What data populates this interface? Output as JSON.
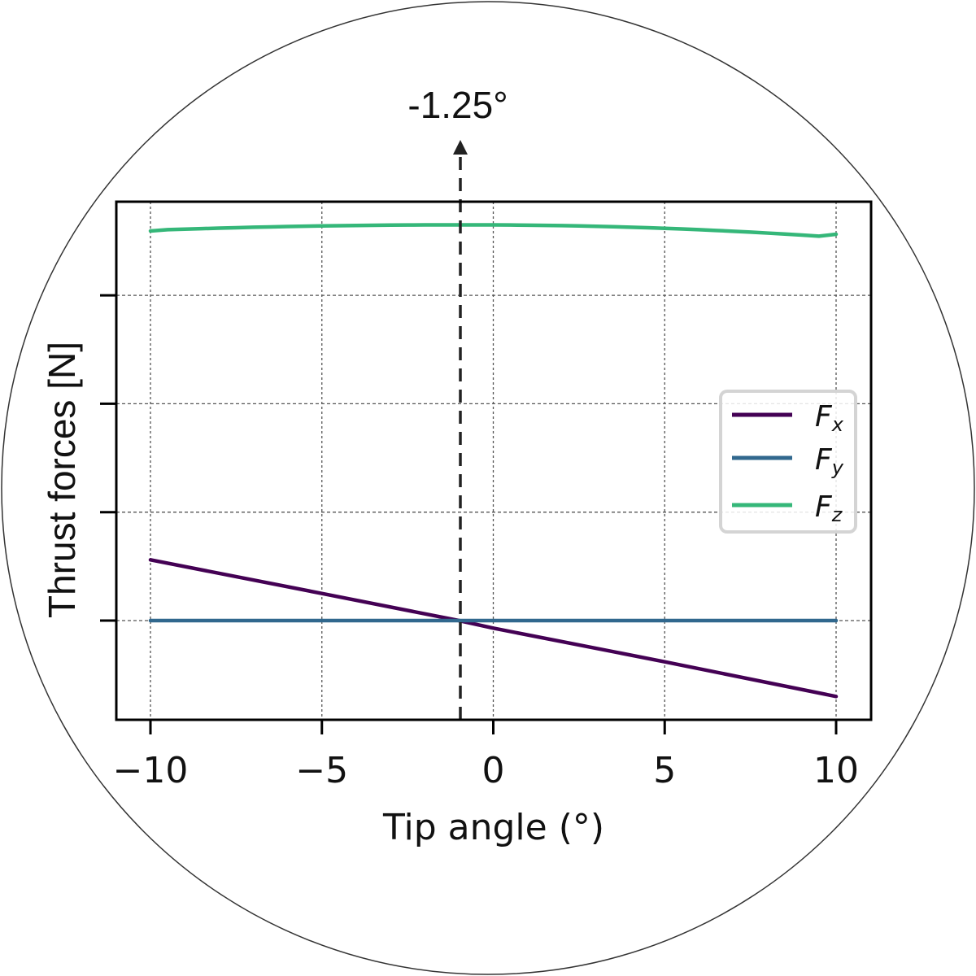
{
  "chart_data": {
    "type": "line",
    "title": "",
    "xlabel": "Tip angle (°)",
    "ylabel": "Thrust forces [N]",
    "xlim": [
      -11,
      11
    ],
    "ylim": [
      -0.92,
      3.88
    ],
    "xticks": [
      -10,
      -5,
      0,
      5,
      10
    ],
    "xtick_labels": [
      "−10",
      "−5",
      "0",
      "5",
      "10"
    ],
    "yticks": [
      0,
      1,
      2,
      3
    ],
    "ytick_labels": [
      "",
      "",
      "",
      ""
    ],
    "grid": true,
    "legend_position": "center right",
    "x": [
      -10,
      -5,
      -1,
      0,
      5,
      10
    ],
    "series": [
      {
        "name": "F_x",
        "label_main": "F",
        "label_sub": "x",
        "color": "#440154",
        "values": [
          0.56,
          0.25,
          0.0,
          -0.07,
          -0.38,
          -0.7
        ]
      },
      {
        "name": "F_y",
        "label_main": "F",
        "label_sub": "y",
        "color": "#31688e",
        "values": [
          0,
          0,
          0,
          0,
          0,
          0
        ]
      },
      {
        "name": "F_z",
        "label_main": "F",
        "label_sub": "z",
        "color": "#35b779",
        "values": [
          3.6,
          3.64,
          3.65,
          3.65,
          3.63,
          3.57
        ]
      }
    ],
    "annotations": [
      {
        "type": "vline",
        "x": -1.0,
        "style": "dashed",
        "arrow": "up",
        "label": "-1.25°"
      }
    ]
  },
  "frame": {
    "shape": "circle",
    "stroke": "#333333"
  }
}
